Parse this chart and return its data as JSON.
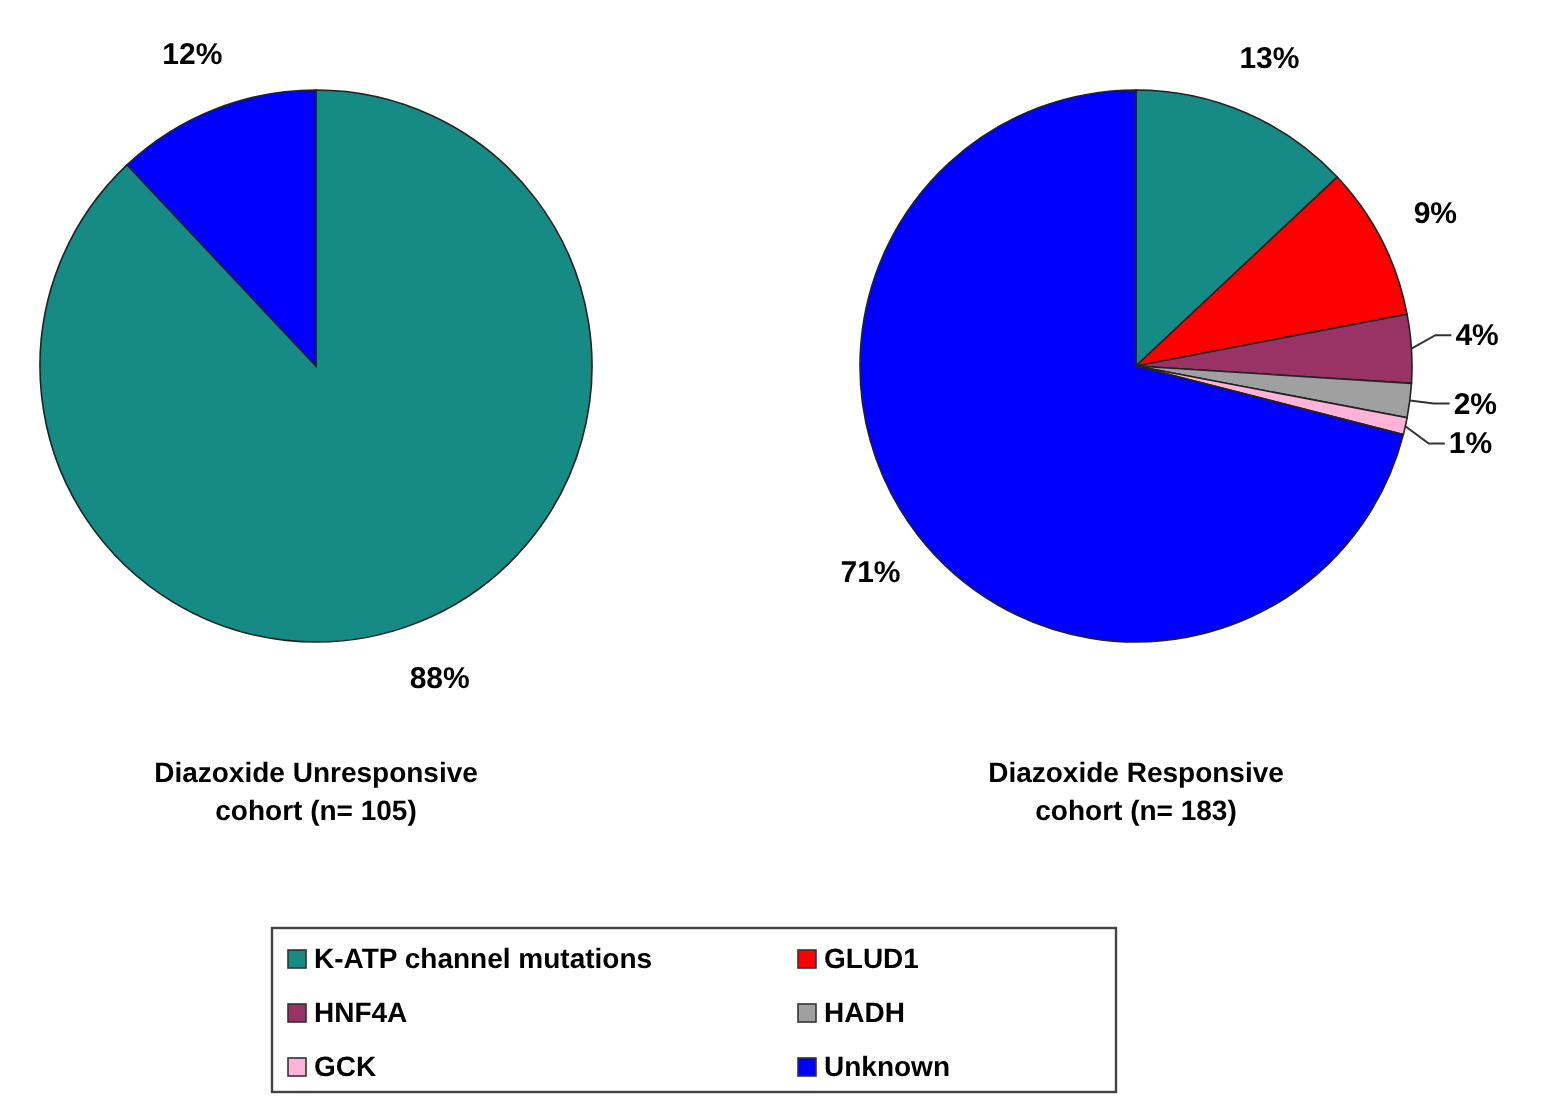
{
  "chart_data": [
    {
      "type": "pie",
      "title": "Diazoxide Unresponsive\ncohort (n= 105)",
      "categories": [
        null,
        null
      ],
      "values": [
        88,
        12
      ],
      "colors": [
        "#168a84",
        "#0000ff"
      ],
      "value_labels": [
        "88%",
        "12%"
      ]
    },
    {
      "type": "pie",
      "title": "Diazoxide Responsive\ncohort (n= 183)",
      "categories": [
        "K-ATP channel mutations",
        "GLUD1",
        "HNF4A",
        "HADH",
        "GCK",
        "Unknown"
      ],
      "values": [
        13,
        9,
        4,
        2,
        1,
        71
      ],
      "colors": [
        "#168a84",
        "#ff0000",
        "#993366",
        "#a0a0a0",
        "#ffb3d9",
        "#0000ff"
      ],
      "value_labels": [
        "13%",
        "9%",
        "4%",
        "2%",
        "1%",
        "71%"
      ],
      "legend": "bottom"
    }
  ]
}
